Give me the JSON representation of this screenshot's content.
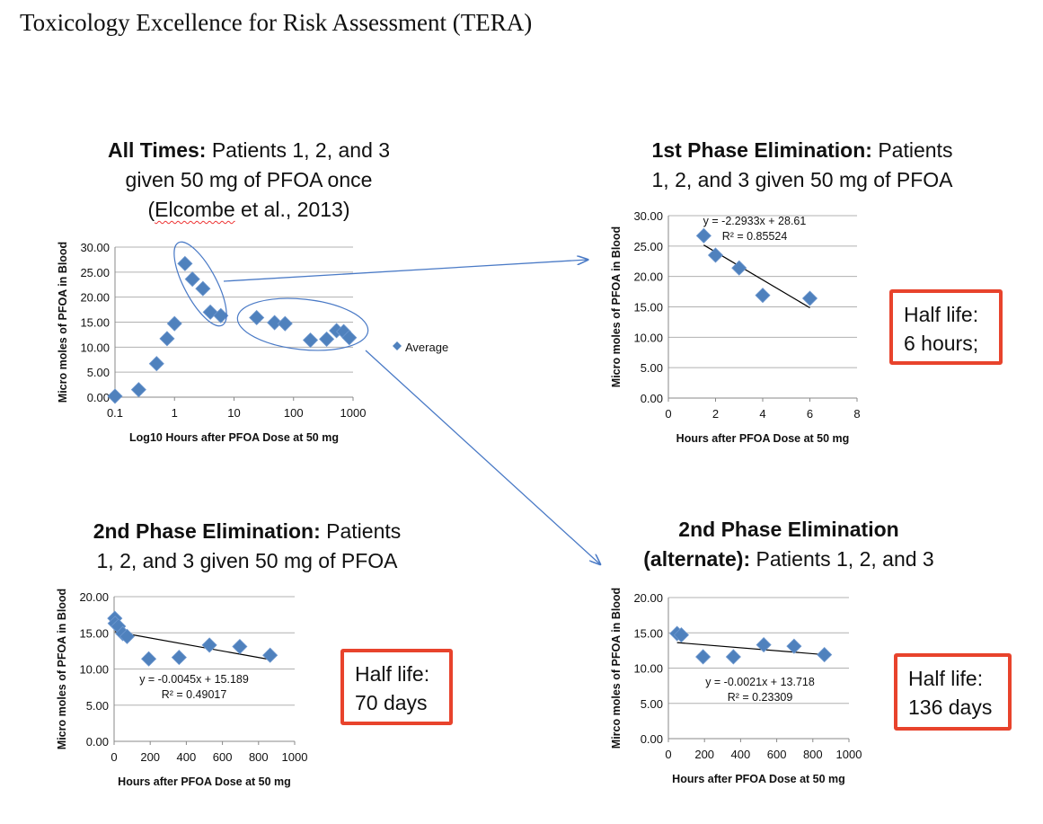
{
  "title": "Toxicology Excellence for Risk Assessment (TERA)",
  "colors": {
    "marker": "#4f81bd",
    "annotation": "#4a7ac6",
    "halflife_border": "#e8432c",
    "grid": "#b0b0b0"
  },
  "charts_titles": {
    "c1": {
      "bold": "All Times:",
      "rest": " Patients 1, 2, and 3",
      "line2": "given 50 mg of PFOA once",
      "line3_pre": "(",
      "line3_name": "Elcombe",
      "line3_post": " et al., 2013)"
    },
    "c2": {
      "bold": "1st Phase Elimination:",
      "rest": " Patients",
      "line2": "1, 2, and 3 given 50 mg of PFOA"
    },
    "c3": {
      "bold": "2nd Phase Elimination:",
      "rest": " Patients",
      "line2": "1, 2, and 3 given 50 mg of PFOA"
    },
    "c4": {
      "bold": "2nd Phase Elimination",
      "line2_bold": "(alternate):",
      "line2_rest": " Patients 1, 2, and 3"
    }
  },
  "half_life": [
    {
      "label": "Half life:",
      "value": "6 hours;"
    },
    {
      "label": "Half life:",
      "value": "70 days"
    },
    {
      "label": "Half life:",
      "value": "136 days"
    }
  ],
  "chart_data": [
    {
      "type": "scatter",
      "xscale": "log",
      "xlim": [
        0.1,
        1000
      ],
      "ylim": [
        0,
        30
      ],
      "grid": true,
      "legend": "right",
      "xlabel": "Log10 Hours after PFOA Dose at 50 mg",
      "ylabel": "Micro moles of PFOA in Blood",
      "xticks": [
        "0.1",
        "1",
        "10",
        "100",
        "1000"
      ],
      "yticks": [
        "0.00",
        "5.00",
        "10.00",
        "15.00",
        "20.00",
        "25.00",
        "30.00"
      ],
      "series": [
        {
          "name": "Average",
          "x": [
            0.1,
            0.25,
            0.5,
            0.75,
            1,
            1.5,
            2,
            3,
            4,
            6,
            24,
            48,
            72,
            192,
            360,
            528,
            696,
            864
          ],
          "y": [
            0.2,
            1.5,
            6.7,
            11.7,
            14.7,
            26.7,
            23.6,
            21.7,
            17.0,
            16.3,
            15.9,
            14.9,
            14.7,
            11.4,
            11.6,
            13.3,
            13.1,
            11.9
          ]
        }
      ]
    },
    {
      "type": "scatter",
      "xlim": [
        0,
        8
      ],
      "ylim": [
        0,
        30
      ],
      "grid": true,
      "xlabel": "Hours after PFOA Dose at 50 mg",
      "ylabel": "Micro moles of PFOA in Blood",
      "xticks": [
        "0",
        "2",
        "4",
        "6",
        "8"
      ],
      "yticks": [
        "0.00",
        "5.00",
        "10.00",
        "15.00",
        "20.00",
        "25.00",
        "30.00"
      ],
      "series": [
        {
          "x": [
            1.5,
            2,
            3,
            4,
            6
          ],
          "y": [
            26.7,
            23.5,
            21.4,
            16.9,
            16.4
          ]
        }
      ],
      "trendline": {
        "slope": -2.2933,
        "intercept": 28.61,
        "x": [
          1.5,
          6
        ],
        "equation": "y = -2.2933x + 28.61",
        "r2": "R² = 0.85524"
      }
    },
    {
      "type": "scatter",
      "xlim": [
        0,
        1000
      ],
      "ylim": [
        0,
        20
      ],
      "grid": true,
      "xlabel": "Hours after PFOA Dose at 50 mg",
      "ylabel": "Micro moles of PFOA in Blood",
      "xticks": [
        "0",
        "200",
        "400",
        "600",
        "800",
        "1000"
      ],
      "yticks": [
        "0.00",
        "5.00",
        "10.00",
        "15.00",
        "20.00"
      ],
      "series": [
        {
          "x": [
            4,
            6,
            24,
            48,
            72,
            192,
            360,
            528,
            696,
            864
          ],
          "y": [
            17.0,
            16.3,
            15.9,
            14.9,
            14.5,
            11.4,
            11.6,
            13.3,
            13.1,
            11.9
          ]
        }
      ],
      "trendline": {
        "slope": -0.0045,
        "intercept": 15.189,
        "x": [
          4,
          864
        ],
        "equation": "y = -0.0045x + 15.189",
        "r2": "R² = 0.49017"
      }
    },
    {
      "type": "scatter",
      "xlim": [
        0,
        1000
      ],
      "ylim": [
        0,
        20
      ],
      "grid": true,
      "xlabel": "Hours after PFOA Dose at 50 mg",
      "ylabel": "Mirco moles of PFOA in Blood",
      "xticks": [
        "0",
        "200",
        "400",
        "600",
        "800",
        "1000"
      ],
      "yticks": [
        "0.00",
        "5.00",
        "10.00",
        "15.00",
        "20.00"
      ],
      "series": [
        {
          "x": [
            48,
            72,
            192,
            360,
            528,
            696,
            864
          ],
          "y": [
            14.9,
            14.7,
            11.6,
            11.6,
            13.3,
            13.1,
            11.9
          ]
        }
      ],
      "trendline": {
        "slope": -0.0021,
        "intercept": 13.718,
        "x": [
          48,
          864
        ],
        "equation": "y = -0.0021x + 13.718",
        "r2": "R² = 0.23309"
      }
    }
  ]
}
